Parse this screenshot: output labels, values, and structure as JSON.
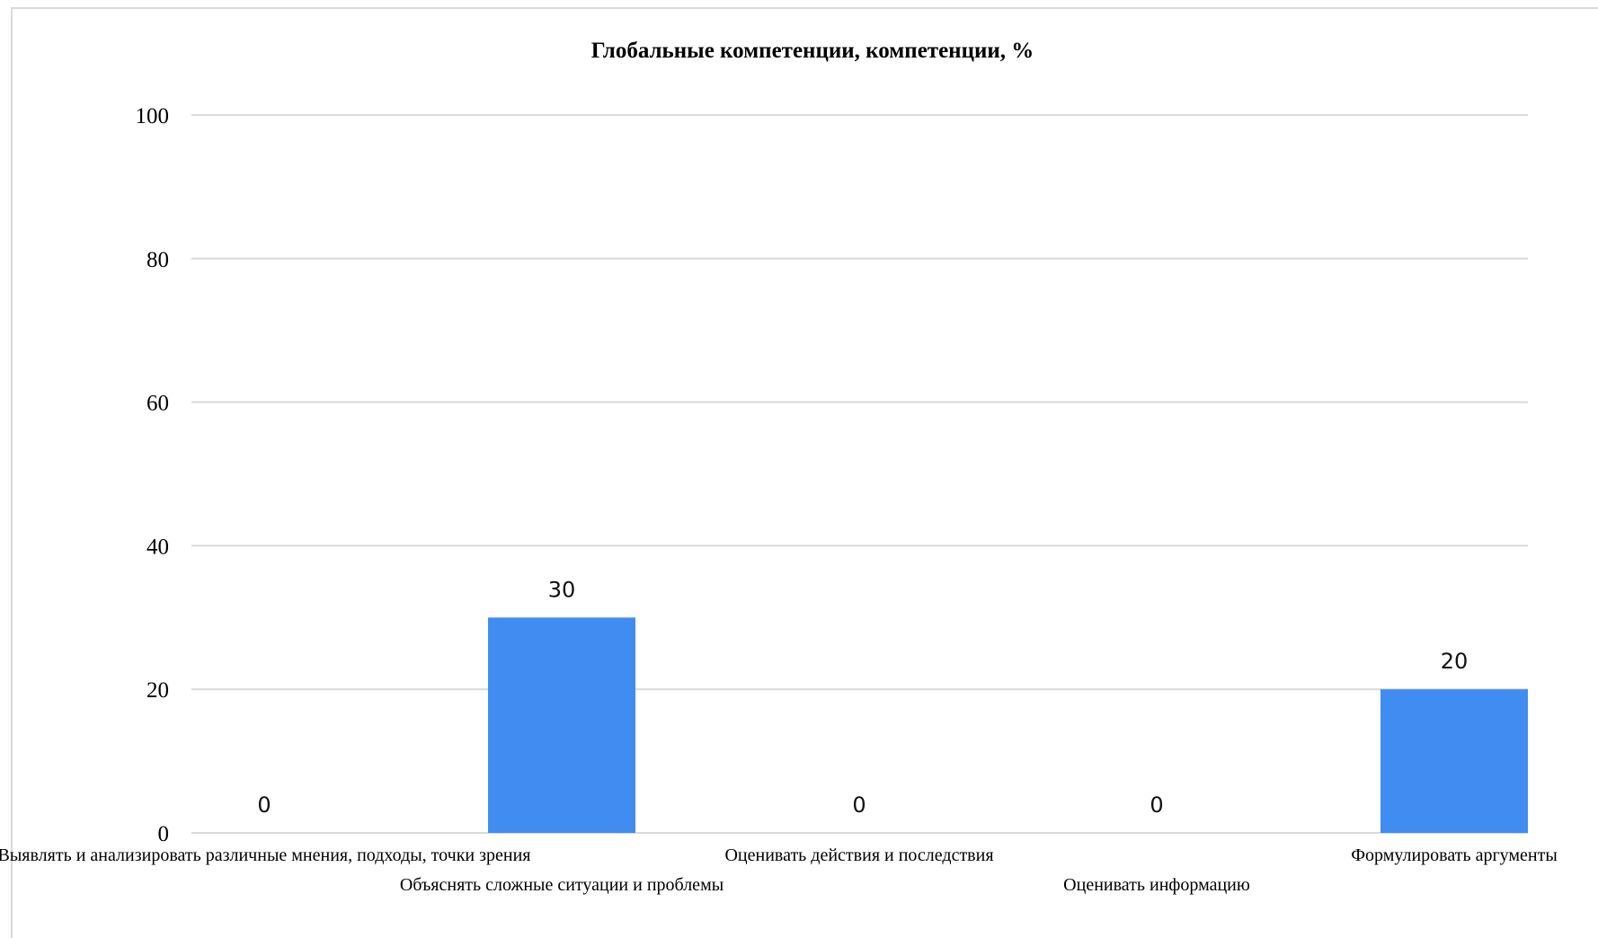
{
  "chart_data": {
    "type": "bar",
    "title": "Глобальные компетенции, компетенции, %",
    "categories": [
      "Выявлять и анализировать различные мнения, подходы, точки зрения",
      "Объяснять сложные ситуации и проблемы",
      "Оценивать действия и последствия",
      "Оценивать информацию",
      "Формулировать аргументы"
    ],
    "series": [
      {
        "values": [
          0,
          30,
          0,
          0,
          20
        ]
      }
    ],
    "data_labels": [
      "0",
      "30",
      "0",
      "0",
      "20"
    ],
    "yticks": [
      0,
      20,
      40,
      60,
      80,
      100
    ],
    "ylim": [
      0,
      100
    ],
    "xlabel": "",
    "ylabel": "",
    "grid": true,
    "legend": "none",
    "colors": {
      "bar": "#418cf0",
      "grid": "#d9d9d9"
    }
  }
}
